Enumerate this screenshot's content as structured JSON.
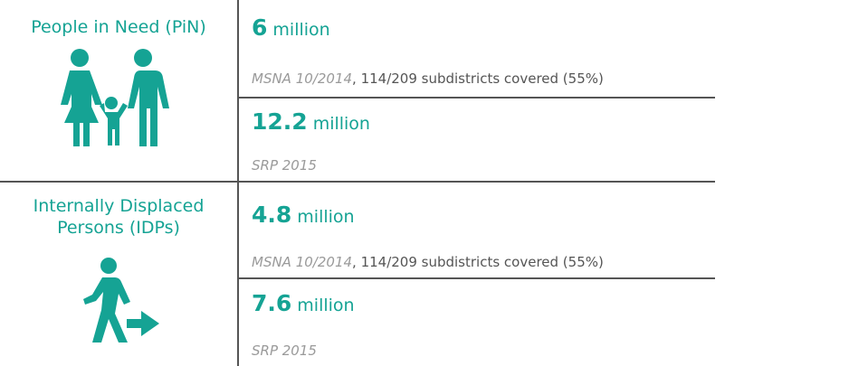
{
  "sections": [
    {
      "label": "People in Need (PiN)",
      "entries": [
        {
          "value": 6,
          "unit": "million",
          "source": "MSNA 10/2014",
          "note": ", 114/209 subdistricts covered (55%)"
        },
        {
          "value": 12.2,
          "unit": "million",
          "source": "SRP 2015"
        }
      ]
    },
    {
      "label": "Internally Displaced Persons (IDPs)",
      "entries": [
        {
          "value": 4.8,
          "unit": "million",
          "source": "MSNA 10/2014",
          "note": ", 114/209 subdistricts covered (55%)"
        },
        {
          "value": 7.6,
          "unit": "million",
          "source": "SRP 2015"
        }
      ]
    }
  ]
}
